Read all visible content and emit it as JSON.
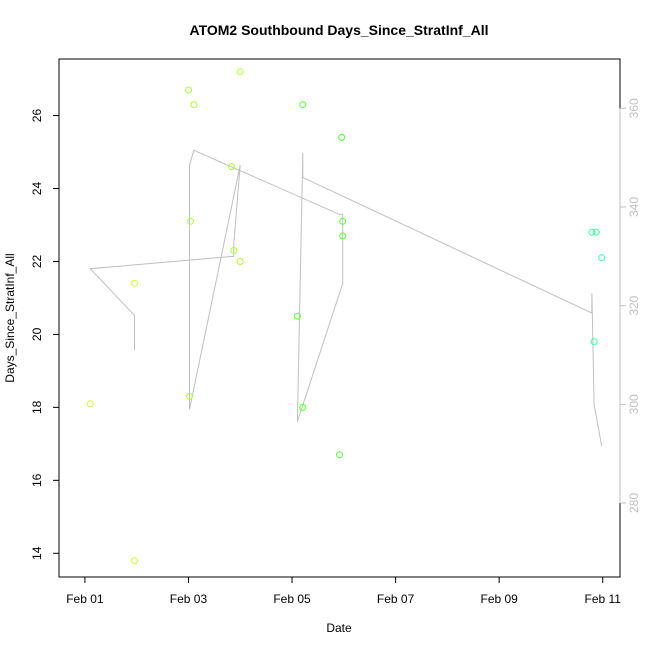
{
  "chart_data": {
    "type": "scatter",
    "title": "ATOM2 Southbound Days_Since_StratInf_All",
    "xlabel": "Date",
    "ylabel": "Days_Since_StratInf_All",
    "x_tick_labels": [
      "Feb 01",
      "Feb 03",
      "Feb 05",
      "Feb 07",
      "Feb 09",
      "Feb 11"
    ],
    "x_tick_values": [
      "2014-02-01",
      "2014-02-03",
      "2014-02-05",
      "2014-02-07",
      "2014-02-09",
      "2014-02-11"
    ],
    "xlim": [
      "2014-01-31T12:00",
      "2014-02-11T08:00"
    ],
    "y_ticks": [
      14,
      16,
      18,
      20,
      22,
      24,
      26
    ],
    "ylim": [
      13.35,
      27.55
    ],
    "y2_ticks": [
      280,
      300,
      320,
      340,
      360
    ],
    "y2lim": [
      265,
      370
    ],
    "grid": false,
    "legend": "none",
    "colors": {
      "yellowish": "#ccff33",
      "yellow_green": "#aaff33",
      "green": "#55ff33",
      "mint": "#33ff99",
      "aqua": "#33ffbb",
      "track_line": "#bfbfbf",
      "axis": "#000000",
      "right_axis": "#bfbfbf"
    },
    "series": [
      {
        "type": "points",
        "points": [
          {
            "x": "2014-02-01T02:30",
            "y": 18.1,
            "color": "yellowish"
          },
          {
            "x": "2014-02-01T23:00",
            "y": 21.4,
            "color": "yellowish"
          },
          {
            "x": "2014-02-01T23:00",
            "y": 13.8,
            "color": "yellowish"
          },
          {
            "x": "2014-02-03T00:00",
            "y": 26.7,
            "color": "yellow_green"
          },
          {
            "x": "2014-02-03T02:30",
            "y": 26.3,
            "color": "yellow_green"
          },
          {
            "x": "2014-02-03T01:00",
            "y": 23.1,
            "color": "yellow_green"
          },
          {
            "x": "2014-02-03T00:30",
            "y": 18.3,
            "color": "yellow_green"
          },
          {
            "x": "2014-02-03T20:00",
            "y": 24.6,
            "color": "yellow_green"
          },
          {
            "x": "2014-02-03T21:00",
            "y": 22.3,
            "color": "yellow_green"
          },
          {
            "x": "2014-02-04T00:00",
            "y": 27.2,
            "color": "yellow_green"
          },
          {
            "x": "2014-02-04T00:00",
            "y": 22.0,
            "color": "yellow_green"
          },
          {
            "x": "2014-02-05T02:30",
            "y": 20.5,
            "color": "green"
          },
          {
            "x": "2014-02-05T05:00",
            "y": 26.3,
            "color": "green"
          },
          {
            "x": "2014-02-05T05:00",
            "y": 18.0,
            "color": "green"
          },
          {
            "x": "2014-02-05T22:00",
            "y": 16.7,
            "color": "green"
          },
          {
            "x": "2014-02-05T23:00",
            "y": 25.4,
            "color": "green"
          },
          {
            "x": "2014-02-05T23:30",
            "y": 23.1,
            "color": "green"
          },
          {
            "x": "2014-02-05T23:30",
            "y": 22.7,
            "color": "green"
          },
          {
            "x": "2014-02-10T19:00",
            "y": 22.8,
            "color": "mint"
          },
          {
            "x": "2014-02-10T21:00",
            "y": 22.8,
            "color": "mint"
          },
          {
            "x": "2014-02-10T20:00",
            "y": 19.8,
            "color": "mint"
          },
          {
            "x": "2014-02-10T23:30",
            "y": 22.1,
            "color": "aqua"
          }
        ]
      },
      {
        "type": "line",
        "axis": "right",
        "color": "track_line",
        "points": [
          {
            "x": "2014-02-01T23:00",
            "y2": 311
          },
          {
            "x": "2014-02-01T23:00",
            "y2": 318
          },
          {
            "x": "2014-02-01T02:30",
            "y2": 327.5
          },
          {
            "x": "2014-02-03T21:00",
            "y2": 330
          },
          {
            "x": "2014-02-03T21:00",
            "y2": 332.5
          },
          {
            "x": "2014-02-04T00:00",
            "y2": 348.5
          },
          {
            "x": "2014-02-03T00:30",
            "y2": 299
          },
          {
            "x": "2014-02-03T00:30",
            "y2": 348.5
          },
          {
            "x": "2014-02-03T02:30",
            "y2": 351.5
          },
          {
            "x": "2014-02-05T22:00",
            "y2": 338.5
          },
          {
            "x": "2014-02-05T23:30",
            "y2": 338.5
          },
          {
            "x": "2014-02-05T23:30",
            "y2": 324.5
          },
          {
            "x": "2014-02-05T02:30",
            "y2": 296.5
          },
          {
            "x": "2014-02-05T05:00",
            "y2": 351
          },
          {
            "x": "2014-02-05T05:00",
            "y2": 346
          },
          {
            "x": "2014-02-10T19:00",
            "y2": 318.5
          },
          {
            "x": "2014-02-10T19:00",
            "y2": 322.5
          },
          {
            "x": "2014-02-10T20:00",
            "y2": 300
          },
          {
            "x": "2014-02-10T23:30",
            "y2": 291.5
          }
        ]
      }
    ]
  }
}
